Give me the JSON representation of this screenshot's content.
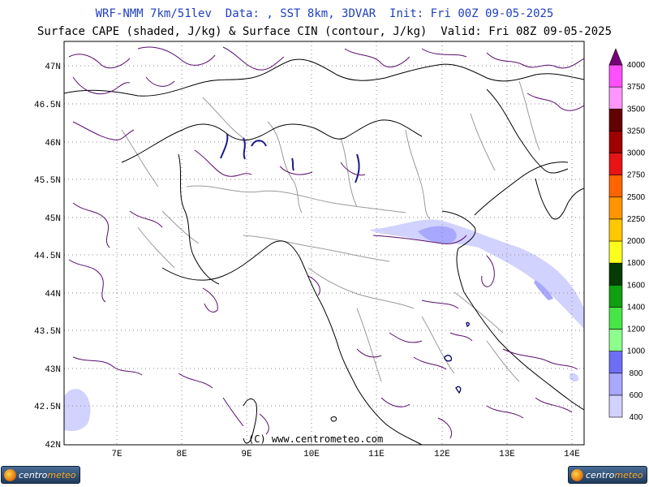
{
  "header": {
    "title_line1": "WRF-NMM 7km/51lev  Data: , SST 8km, 3DVAR  Init: Fri 00Z 09-05-2025",
    "title_line2": "Surface CAPE (shaded, J/kg) & Surface CIN (contour, J/kg)  Valid: Fri 08Z 09-05-2025"
  },
  "map": {
    "lat_labels": [
      "47N",
      "46.5N",
      "46N",
      "45.5N",
      "45N",
      "44.5N",
      "44N",
      "43.5N",
      "43N",
      "42.5N",
      "42N"
    ],
    "lon_labels": [
      "7E",
      "8E",
      "9E",
      "10E",
      "11E",
      "12E",
      "13E",
      "14E"
    ],
    "copyright": "(C) www.centrometeo.com"
  },
  "colorbar": {
    "labels": [
      "400",
      "600",
      "800",
      "1000",
      "1200",
      "1400",
      "1600",
      "1800",
      "2000",
      "2250",
      "2500",
      "2750",
      "3000",
      "3250",
      "3500",
      "3750",
      "4000"
    ],
    "colors": [
      "#d2d2ff",
      "#a8a8ff",
      "#6e6ef5",
      "#8cff8c",
      "#46e646",
      "#0fa00f",
      "#053c05",
      "#ffff1e",
      "#ffc800",
      "#ff9600",
      "#ff6400",
      "#e61414",
      "#a00000",
      "#640000",
      "#ff96ff",
      "#ff50ff",
      "#c814c8",
      "#780078"
    ]
  },
  "logos": {
    "left": {
      "prefix": "centro",
      "suffix": "meteo"
    },
    "right": {
      "prefix": "centro",
      "suffix": "meteo"
    }
  }
}
